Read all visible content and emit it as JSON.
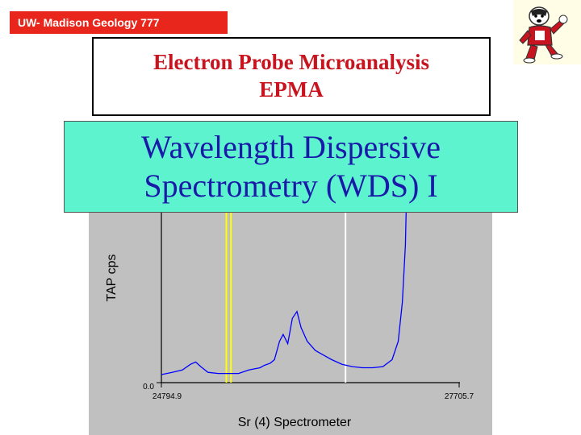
{
  "header": {
    "course_label": "UW- Madison Geology  777",
    "title_line1": "Electron Probe Microanalysis",
    "title_line2": "EPMA",
    "subtitle_line1": "Wavelength Dispersive",
    "subtitle_line2": "Spectrometry (WDS) I"
  },
  "colors": {
    "badge": "#e8261c",
    "title": "#c8141e",
    "subtitle_text": "#1a1aa8",
    "subtitle_bg": "#5ef3cf",
    "plot_bg": "#c0c0c0",
    "trace": "#0000ff",
    "marker_yellow": "#ffff00",
    "marker_white": "#ffffff"
  },
  "mascot": {
    "icon": "badger-mascot-icon"
  },
  "chart_data": {
    "type": "line",
    "title": "",
    "xlabel": "Sr (4) Spectrometer",
    "ylabel": "TAP cps",
    "xlim": [
      24794.9,
      27705.7
    ],
    "x_tick_labels": [
      "24794.9",
      "27705.7"
    ],
    "y_tick_labels": [
      "0.0"
    ],
    "y_range_fraction": [
      0,
      1
    ],
    "markers": [
      {
        "x": 25430,
        "color": "yellow"
      },
      {
        "x": 25475,
        "color": "yellow"
      },
      {
        "x": 26595,
        "color": "white"
      }
    ],
    "series": [
      {
        "color": "blue",
        "points": [
          [
            24794.9,
            0.035
          ],
          [
            24900,
            0.045
          ],
          [
            25000,
            0.055
          ],
          [
            25080,
            0.08
          ],
          [
            25130,
            0.09
          ],
          [
            25180,
            0.07
          ],
          [
            25250,
            0.045
          ],
          [
            25350,
            0.04
          ],
          [
            25450,
            0.04
          ],
          [
            25550,
            0.04
          ],
          [
            25650,
            0.055
          ],
          [
            25760,
            0.065
          ],
          [
            25800,
            0.075
          ],
          [
            25860,
            0.085
          ],
          [
            25900,
            0.1
          ],
          [
            25950,
            0.18
          ],
          [
            25985,
            0.21
          ],
          [
            26030,
            0.17
          ],
          [
            26075,
            0.28
          ],
          [
            26120,
            0.31
          ],
          [
            26160,
            0.24
          ],
          [
            26220,
            0.18
          ],
          [
            26300,
            0.14
          ],
          [
            26380,
            0.12
          ],
          [
            26460,
            0.1
          ],
          [
            26560,
            0.08
          ],
          [
            26660,
            0.07
          ],
          [
            26760,
            0.065
          ],
          [
            26860,
            0.065
          ],
          [
            26960,
            0.07
          ],
          [
            27050,
            0.1
          ],
          [
            27110,
            0.18
          ],
          [
            27150,
            0.35
          ],
          [
            27180,
            0.6
          ],
          [
            27200,
            1.0
          ]
        ]
      }
    ]
  }
}
